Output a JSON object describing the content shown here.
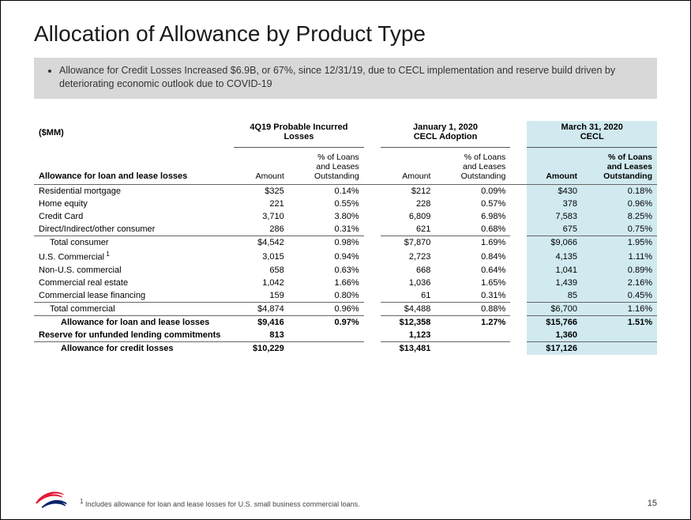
{
  "title": "Allocation of Allowance by Product Type",
  "callout_bullet": "Allowance for Credit Losses Increased $6.9B, or 67%, since 12/31/19, due to CECL implementation and reserve build driven by deteriorating economic outlook due to COVID-19",
  "unit_label": "($MM)",
  "col_groups": {
    "a": {
      "line1": "4Q19 Probable Incurred",
      "line2": "Losses"
    },
    "b": {
      "line1": "January 1, 2020",
      "line2": "CECL Adoption"
    },
    "c": {
      "line1": "March 31, 2020",
      "line2": "CECL"
    }
  },
  "row_header": "Allowance for loan and lease losses",
  "sub_headers": {
    "amount": "Amount",
    "pct_l1": "% of Loans",
    "pct_l2": "and Leases",
    "pct_l3": "Outstanding"
  },
  "rows": [
    {
      "label": "Residential mortgage",
      "indent": 0,
      "a_amt": "$325",
      "a_pct": "0.14%",
      "b_amt": "$212",
      "b_pct": "0.09%",
      "c_amt": "$430",
      "c_pct": "0.18%"
    },
    {
      "label": "Home equity",
      "indent": 0,
      "a_amt": "221",
      "a_pct": "0.55%",
      "b_amt": "228",
      "b_pct": "0.57%",
      "c_amt": "378",
      "c_pct": "0.96%"
    },
    {
      "label": "Credit Card",
      "indent": 0,
      "a_amt": "3,710",
      "a_pct": "3.80%",
      "b_amt": "6,809",
      "b_pct": "6.98%",
      "c_amt": "7,583",
      "c_pct": "8.25%"
    },
    {
      "label": "Direct/Indirect/other consumer",
      "indent": 0,
      "a_amt": "286",
      "a_pct": "0.31%",
      "b_amt": "621",
      "b_pct": "0.68%",
      "c_amt": "675",
      "c_pct": "0.75%"
    },
    {
      "label": "Total consumer",
      "indent": 1,
      "a_amt": "$4,542",
      "a_pct": "0.98%",
      "b_amt": "$7,870",
      "b_pct": "1.69%",
      "c_amt": "$9,066",
      "c_pct": "1.95%",
      "topline": true
    },
    {
      "label": "U.S. Commercial",
      "sup": "1",
      "indent": 0,
      "a_amt": "3,015",
      "a_pct": "0.94%",
      "b_amt": "2,723",
      "b_pct": "0.84%",
      "c_amt": "4,135",
      "c_pct": "1.11%"
    },
    {
      "label": "Non-U.S. commercial",
      "indent": 0,
      "a_amt": "658",
      "a_pct": "0.63%",
      "b_amt": "668",
      "b_pct": "0.64%",
      "c_amt": "1,041",
      "c_pct": "0.89%"
    },
    {
      "label": "Commercial real estate",
      "indent": 0,
      "a_amt": "1,042",
      "a_pct": "1.66%",
      "b_amt": "1,036",
      "b_pct": "1.65%",
      "c_amt": "1,439",
      "c_pct": "2.16%"
    },
    {
      "label": "Commercial lease financing",
      "indent": 0,
      "a_amt": "159",
      "a_pct": "0.80%",
      "b_amt": "61",
      "b_pct": "0.31%",
      "c_amt": "85",
      "c_pct": "0.45%"
    },
    {
      "label": "Total commercial",
      "indent": 1,
      "a_amt": "$4,874",
      "a_pct": "0.96%",
      "b_amt": "$4,488",
      "b_pct": "0.88%",
      "c_amt": "$6,700",
      "c_pct": "1.16%",
      "topline": true
    },
    {
      "label": "Allowance for loan and lease losses",
      "indent": 2,
      "a_amt": "$9,416",
      "a_pct": "0.97%",
      "b_amt": "$12,358",
      "b_pct": "1.27%",
      "c_amt": "$15,766",
      "c_pct": "1.51%",
      "topline": true,
      "bold": true
    },
    {
      "label": "Reserve for unfunded lending commitments",
      "indent": 0,
      "a_amt": "813",
      "a_pct": "",
      "b_amt": "1,123",
      "b_pct": "",
      "c_amt": "1,360",
      "c_pct": "",
      "bold": true
    },
    {
      "label": "Allowance for credit losses",
      "indent": 2,
      "a_amt": "$10,229",
      "a_pct": "",
      "b_amt": "$13,481",
      "b_pct": "",
      "c_amt": "$17,126",
      "c_pct": "",
      "topline": true,
      "bold": true
    }
  ],
  "footnote": "Includes allowance for loan and lease losses for U.S. small business commercial loans.",
  "footnote_marker": "1",
  "page_number": "15",
  "colors": {
    "callout_bg": "#d8d8d8",
    "highlight_bg": "#d1eaf0",
    "logo_red": "#e31837",
    "logo_blue": "#012169"
  }
}
